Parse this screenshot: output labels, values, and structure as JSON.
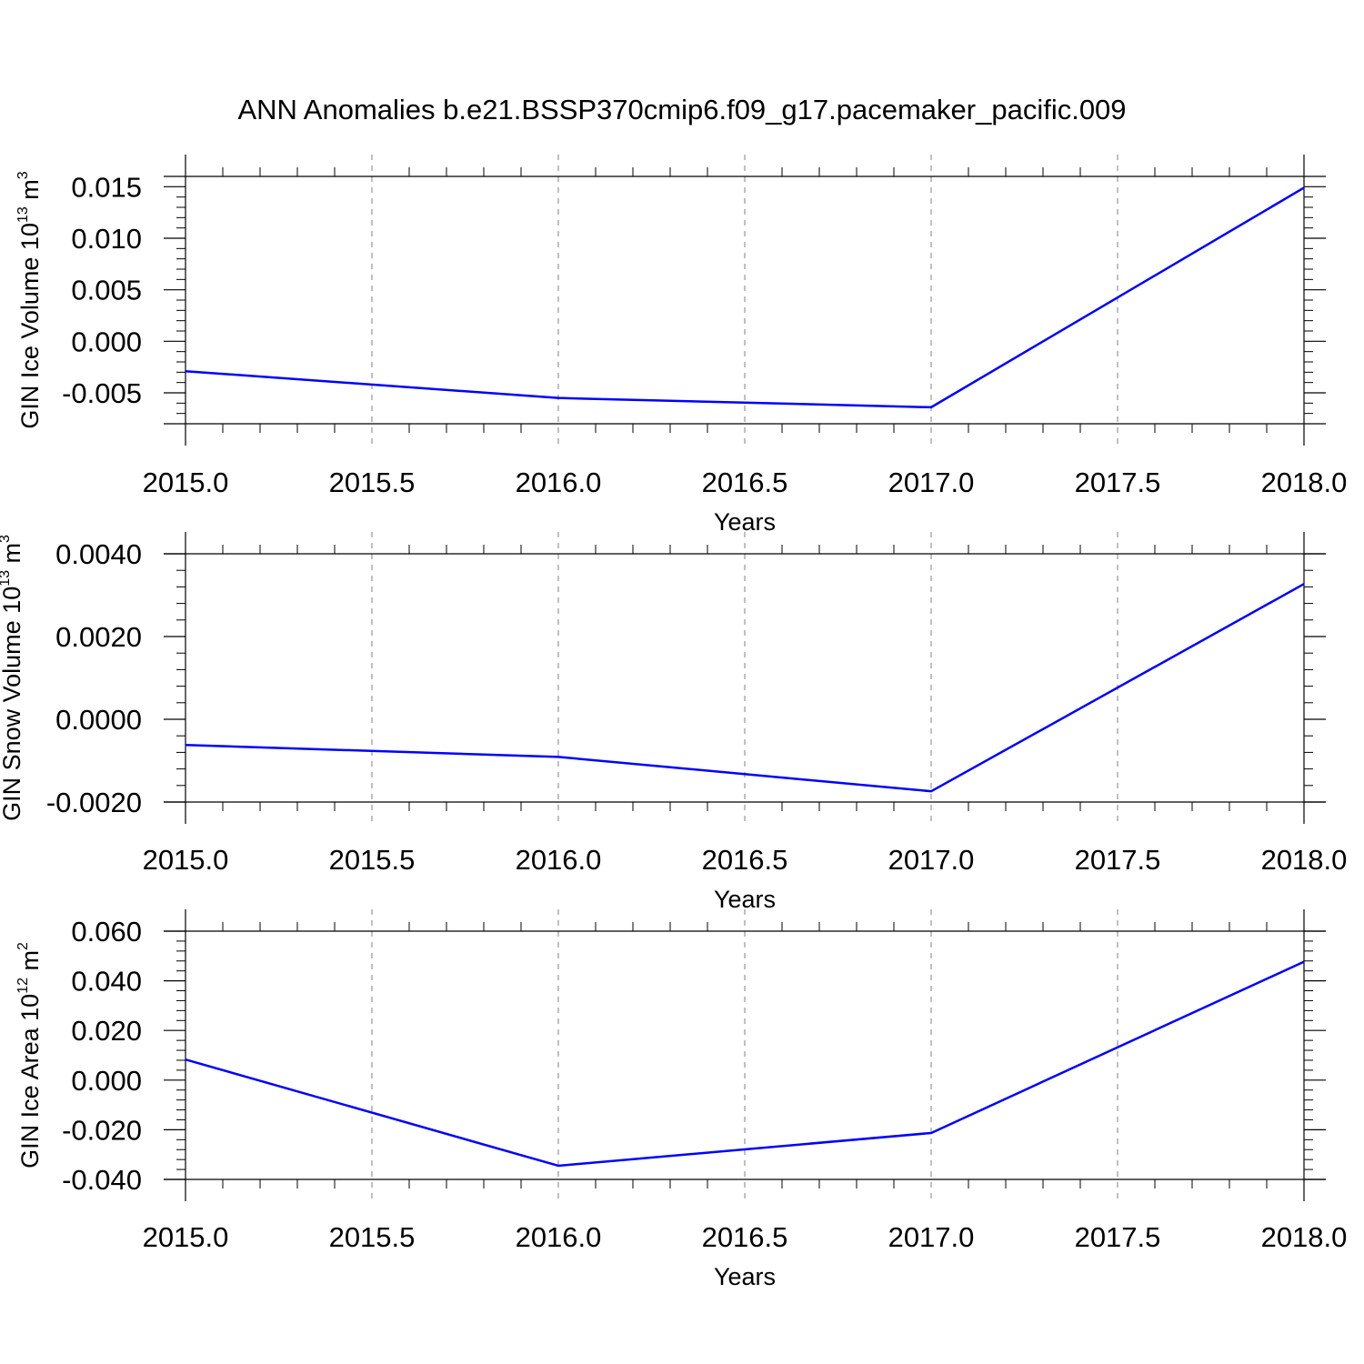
{
  "figure_title": "ANN Anomalies b.e21.BSSP370cmip6.f09_g17.pacemaker_pacific.009",
  "colors": {
    "series_line": "#0000ff",
    "axes": "#000000",
    "grid": "#808080"
  },
  "chart_data": [
    {
      "type": "line",
      "ylabel_main": "GIN Ice Volume 10",
      "ylabel_exp": "13",
      "ylabel_unit": " m",
      "ylabel_unit_exp": "3",
      "xlabel": "Years",
      "xlim": [
        2015.0,
        2018.0
      ],
      "ylim": [
        -0.008,
        0.016
      ],
      "x_ticks": [
        "2015.0",
        "2015.5",
        "2016.0",
        "2016.5",
        "2017.0",
        "2017.5",
        "2018.0"
      ],
      "y_ticks": [
        "-0.005",
        "0.000",
        "0.005",
        "0.010",
        "0.015"
      ],
      "grid": "vertical dashed at x ticks",
      "series": [
        {
          "x": [
            2015,
            2016,
            2017,
            2018
          ],
          "y": [
            -0.0029,
            -0.0055,
            -0.0064,
            0.0149
          ]
        }
      ]
    },
    {
      "type": "line",
      "ylabel_main": "GIN Snow Volume 10",
      "ylabel_exp": "13",
      "ylabel_unit": " m",
      "ylabel_unit_exp": "3",
      "xlabel": "Years",
      "xlim": [
        2015.0,
        2018.0
      ],
      "ylim": [
        -0.002,
        0.004
      ],
      "x_ticks": [
        "2015.0",
        "2015.5",
        "2016.0",
        "2016.5",
        "2017.0",
        "2017.5",
        "2018.0"
      ],
      "y_ticks": [
        "-0.0020",
        "0.0000",
        "0.0020",
        "0.0040"
      ],
      "grid": "vertical dashed at x ticks",
      "series": [
        {
          "x": [
            2015,
            2016,
            2017,
            2018
          ],
          "y": [
            -0.00062,
            -0.00091,
            -0.00174,
            0.00327
          ]
        }
      ]
    },
    {
      "type": "line",
      "ylabel_main": "GIN Ice Area 10",
      "ylabel_exp": "12",
      "ylabel_unit": " m",
      "ylabel_unit_exp": "2",
      "xlabel": "Years",
      "xlim": [
        2015.0,
        2018.0
      ],
      "ylim": [
        -0.04,
        0.06
      ],
      "x_ticks": [
        "2015.0",
        "2015.5",
        "2016.0",
        "2016.5",
        "2017.0",
        "2017.5",
        "2018.0"
      ],
      "y_ticks": [
        "-0.040",
        "-0.020",
        "0.000",
        "0.020",
        "0.040",
        "0.060"
      ],
      "grid": "vertical dashed at x ticks",
      "series": [
        {
          "x": [
            2015,
            2016,
            2017,
            2018
          ],
          "y": [
            0.0083,
            -0.0345,
            -0.0213,
            0.0477
          ]
        }
      ]
    }
  ]
}
